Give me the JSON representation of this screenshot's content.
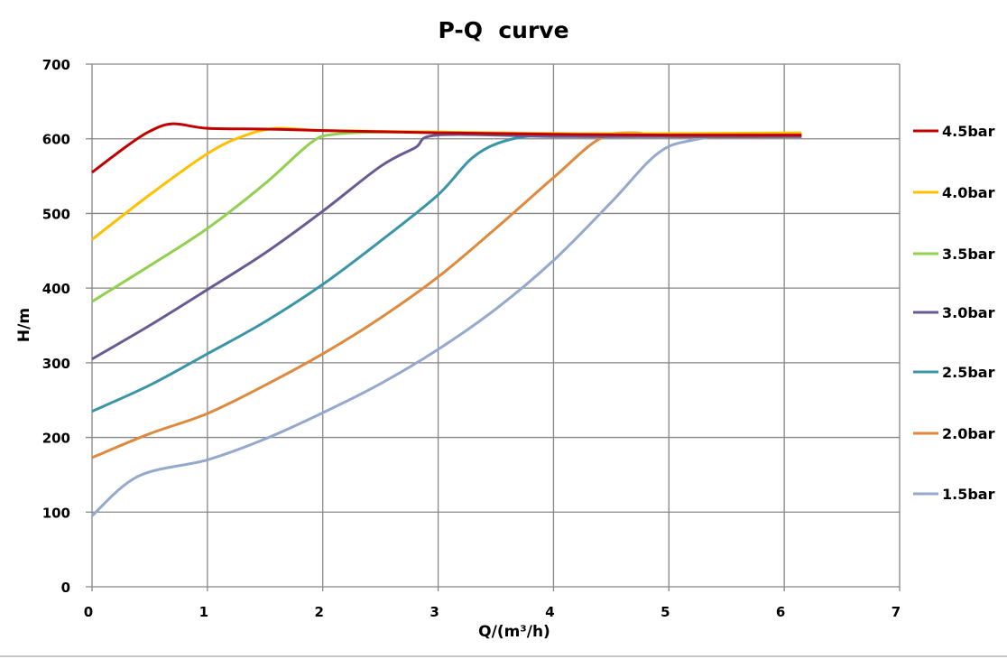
{
  "chart_data": {
    "type": "line",
    "title": "P-Q  curve",
    "xlabel": "Q/(m³/h)",
    "ylabel": "H/m",
    "xlim": [
      0,
      7
    ],
    "ylim": [
      0,
      700
    ],
    "xticks": [
      "0",
      "1",
      "2",
      "3",
      "4",
      "5",
      "6",
      "7"
    ],
    "yticks": [
      "0",
      "100",
      "200",
      "300",
      "400",
      "500",
      "600",
      "700"
    ],
    "grid": true,
    "legend": "right",
    "series": [
      {
        "name": "4.5bar",
        "color": "#c00000",
        "points": [
          [
            0,
            555
          ],
          [
            0.3,
            590
          ],
          [
            0.5,
            610
          ],
          [
            0.7,
            620
          ],
          [
            1,
            614
          ],
          [
            1.5,
            613
          ],
          [
            2,
            611
          ],
          [
            3,
            608
          ],
          [
            4,
            606
          ],
          [
            5,
            605
          ],
          [
            6.15,
            605
          ]
        ]
      },
      {
        "name": "4.0bar",
        "color": "#ffc000",
        "points": [
          [
            0,
            465
          ],
          [
            0.5,
            525
          ],
          [
            1,
            580
          ],
          [
            1.3,
            603
          ],
          [
            1.6,
            614
          ],
          [
            2,
            611
          ],
          [
            3,
            609
          ],
          [
            4,
            607
          ],
          [
            5,
            607
          ],
          [
            6.15,
            608
          ]
        ]
      },
      {
        "name": "3.5bar",
        "color": "#92d050",
        "points": [
          [
            0,
            382
          ],
          [
            0.5,
            430
          ],
          [
            1,
            480
          ],
          [
            1.5,
            540
          ],
          [
            1.9,
            595
          ],
          [
            2.1,
            606
          ],
          [
            2.5,
            609
          ],
          [
            3,
            609
          ],
          [
            4,
            607
          ],
          [
            5,
            606
          ],
          [
            6.15,
            606
          ]
        ]
      },
      {
        "name": "3.0bar",
        "color": "#6a5a92",
        "points": [
          [
            0,
            305
          ],
          [
            0.5,
            350
          ],
          [
            1,
            398
          ],
          [
            1.5,
            447
          ],
          [
            2,
            503
          ],
          [
            2.5,
            563
          ],
          [
            2.8,
            588
          ],
          [
            3,
            605
          ],
          [
            4,
            603
          ],
          [
            5,
            603
          ],
          [
            6.15,
            603
          ]
        ]
      },
      {
        "name": "2.5bar",
        "color": "#3b95a8",
        "points": [
          [
            0,
            235
          ],
          [
            0.5,
            270
          ],
          [
            1,
            312
          ],
          [
            1.5,
            355
          ],
          [
            2,
            405
          ],
          [
            2.5,
            463
          ],
          [
            3,
            525
          ],
          [
            3.3,
            575
          ],
          [
            3.6,
            598
          ],
          [
            4,
            605
          ],
          [
            5,
            604
          ],
          [
            6.15,
            604
          ]
        ]
      },
      {
        "name": "2.0bar",
        "color": "#dd8a3e",
        "points": [
          [
            0,
            173
          ],
          [
            0.5,
            205
          ],
          [
            1,
            232
          ],
          [
            1.5,
            270
          ],
          [
            2,
            312
          ],
          [
            2.5,
            360
          ],
          [
            3,
            415
          ],
          [
            3.5,
            480
          ],
          [
            4,
            548
          ],
          [
            4.4,
            600
          ],
          [
            4.7,
            608
          ],
          [
            5,
            603
          ],
          [
            6.15,
            603
          ]
        ]
      },
      {
        "name": "1.5bar",
        "color": "#95a9cc",
        "points": [
          [
            0,
            95
          ],
          [
            0.4,
            148
          ],
          [
            1,
            170
          ],
          [
            1.5,
            198
          ],
          [
            2,
            233
          ],
          [
            2.5,
            272
          ],
          [
            3,
            318
          ],
          [
            3.5,
            372
          ],
          [
            4,
            437
          ],
          [
            4.5,
            515
          ],
          [
            4.9,
            580
          ],
          [
            5.2,
            598
          ],
          [
            5.7,
            607
          ],
          [
            6.15,
            604
          ]
        ]
      }
    ]
  }
}
